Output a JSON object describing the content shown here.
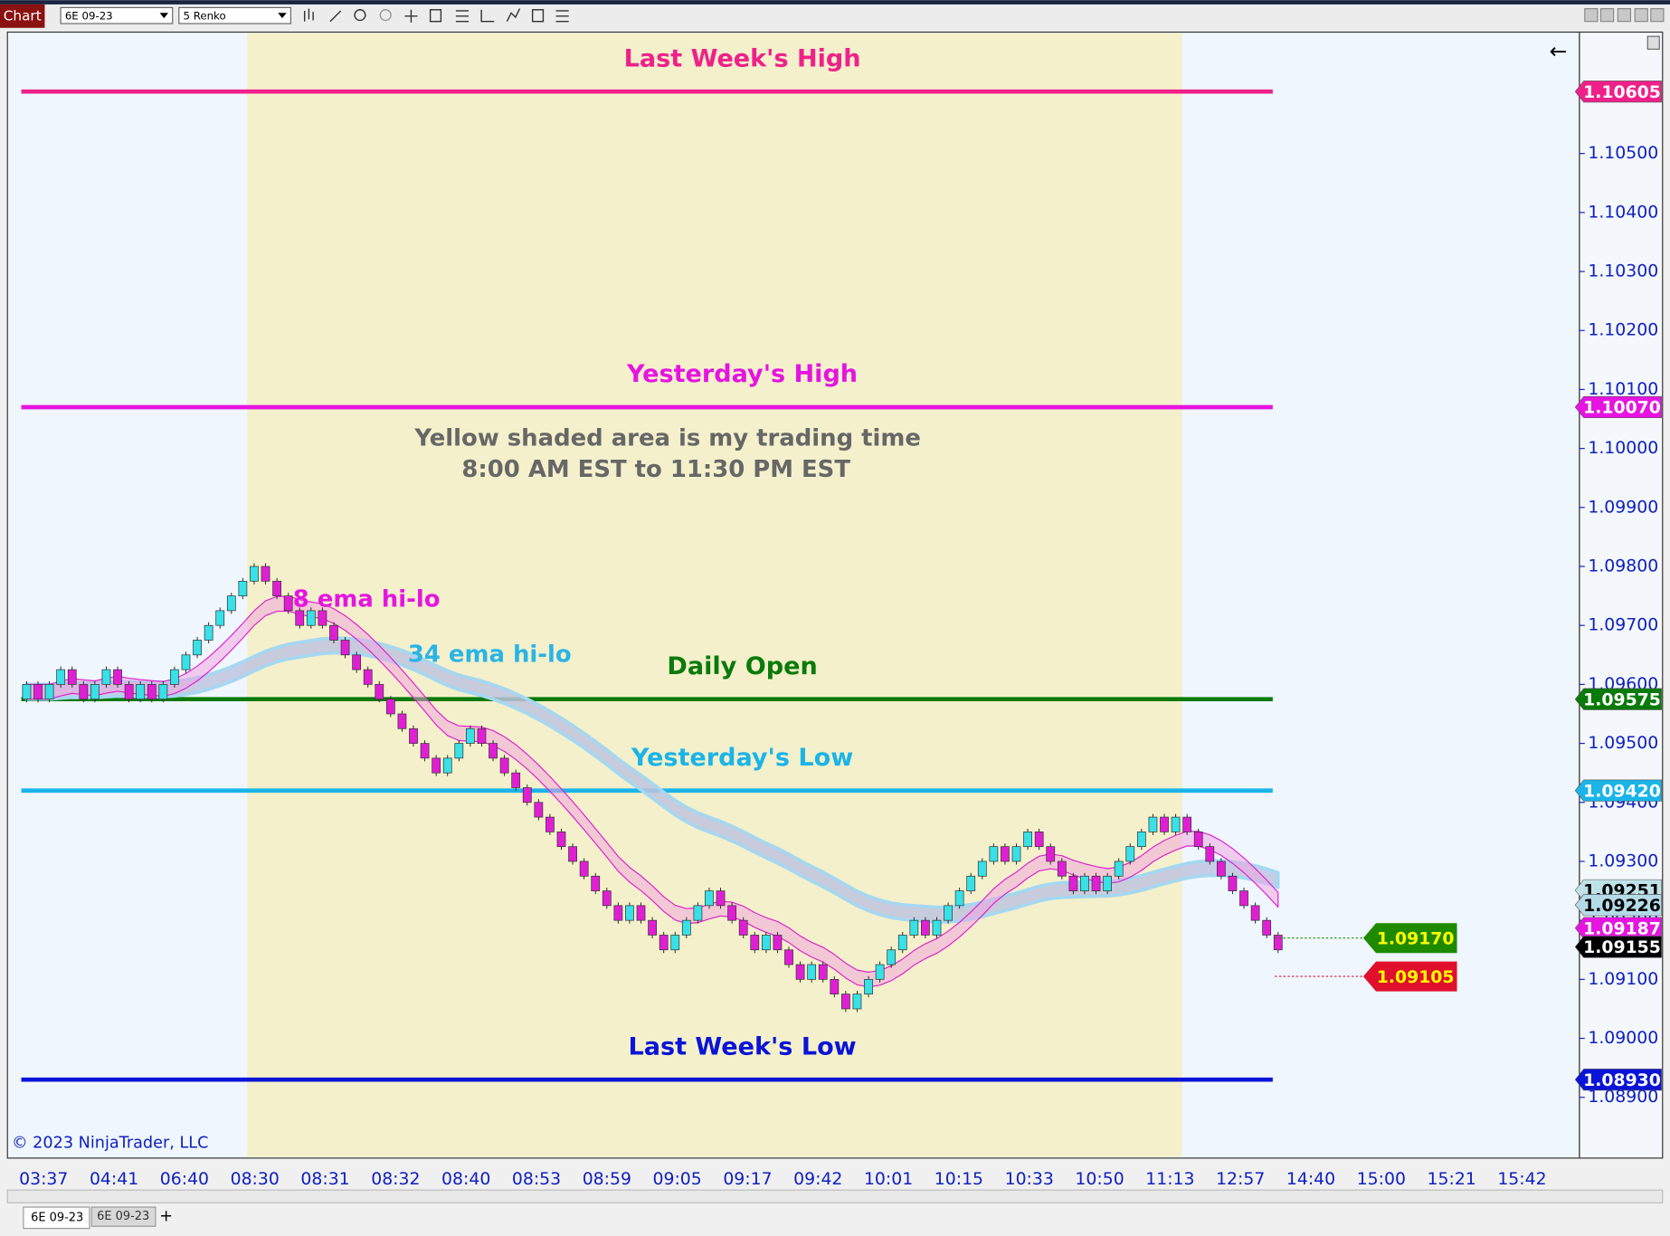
{
  "toolbar": {
    "chart_button": "Chart",
    "instrument": "6E 09-23",
    "bar_type": "5 Renko"
  },
  "chart_data": {
    "type": "renko",
    "open": 1.09575,
    "values": [
      1.096,
      1.09575,
      1.096,
      1.09625,
      1.096,
      1.09575,
      1.096,
      1.09625,
      1.096,
      1.09575,
      1.096,
      1.09575,
      1.096,
      1.09625,
      1.0965,
      1.09675,
      1.097,
      1.09725,
      1.0975,
      1.09775,
      1.098,
      1.09775,
      1.0975,
      1.09725,
      1.097,
      1.09725,
      1.097,
      1.09675,
      1.0965,
      1.09625,
      1.096,
      1.09575,
      1.0955,
      1.09525,
      1.095,
      1.09475,
      1.0945,
      1.09475,
      1.095,
      1.09525,
      1.095,
      1.09475,
      1.0945,
      1.09425,
      1.094,
      1.09375,
      1.0935,
      1.09325,
      1.093,
      1.09275,
      1.0925,
      1.09225,
      1.092,
      1.09225,
      1.092,
      1.09175,
      1.0915,
      1.09175,
      1.092,
      1.09225,
      1.0925,
      1.09225,
      1.092,
      1.09175,
      1.0915,
      1.09175,
      1.0915,
      1.09125,
      1.091,
      1.09125,
      1.091,
      1.09075,
      1.0905,
      1.09075,
      1.091,
      1.09125,
      1.0915,
      1.09175,
      1.092,
      1.09175,
      1.092,
      1.09225,
      1.0925,
      1.09275,
      1.093,
      1.09325,
      1.093,
      1.09325,
      1.0935,
      1.09325,
      1.093,
      1.09275,
      1.0925,
      1.09275,
      1.0925,
      1.09275,
      1.093,
      1.09325,
      1.0935,
      1.09375,
      1.0935,
      1.09375,
      1.0935,
      1.09325,
      1.093,
      1.09275,
      1.0925,
      1.09225,
      1.092,
      1.09175,
      1.0915
    ],
    "up_color": "#38e0e8",
    "down_color": "#e01fd4",
    "x_labels": [
      "03:37",
      "04:41",
      "06:40",
      "08:30",
      "08:31",
      "08:32",
      "08:40",
      "08:53",
      "08:59",
      "09:05",
      "09:17",
      "09:42",
      "10:01",
      "10:15",
      "10:33",
      "10:50",
      "11:13",
      "12:57",
      "14:40",
      "15:00",
      "15:21",
      "15:42"
    ],
    "ylim": [
      1.08797,
      1.10704
    ],
    "yticks": [
      {
        "value": 1.089,
        "label": "1.08900"
      },
      {
        "value": 1.09,
        "label": "1.09000"
      },
      {
        "value": 1.091,
        "label": "1.09100"
      },
      {
        "value": 1.092,
        "label": "1.09200"
      },
      {
        "value": 1.093,
        "label": "1.09300"
      },
      {
        "value": 1.094,
        "label": "1.09400"
      },
      {
        "value": 1.095,
        "label": "1.09500"
      },
      {
        "value": 1.096,
        "label": "1.09600"
      },
      {
        "value": 1.097,
        "label": "1.09700"
      },
      {
        "value": 1.098,
        "label": "1.09800"
      },
      {
        "value": 1.099,
        "label": "1.09900"
      },
      {
        "value": 1.1,
        "label": "1.10000"
      },
      {
        "value": 1.101,
        "label": "1.10100"
      },
      {
        "value": 1.102,
        "label": "1.10200"
      },
      {
        "value": 1.103,
        "label": "1.10300"
      },
      {
        "value": 1.104,
        "label": "1.10400"
      },
      {
        "value": 1.105,
        "label": "1.10500"
      }
    ],
    "levels": [
      {
        "name": "Last Week's High",
        "value": 1.10605,
        "value_label": "1.10605",
        "color": "#f0208a"
      },
      {
        "name": "Yesterday's High",
        "value": 1.1007,
        "value_label": "1.10070",
        "color": "#e614e0"
      },
      {
        "name": "Daily Open",
        "value": 1.09575,
        "value_label": "1.09575",
        "color": "#0a7a0a"
      },
      {
        "name": "Yesterday's Low",
        "value": 1.0942,
        "value_label": "1.09420",
        "color": "#1ab4e8"
      },
      {
        "name": "Last Week's Low",
        "value": 1.0893,
        "value_label": "1.08930",
        "color": "#0a14d8"
      }
    ],
    "price_markers": [
      {
        "value": 1.09251,
        "value_label": "1.09251",
        "color": "#bfe2e8",
        "text_color": "#000000"
      },
      {
        "value": 1.09226,
        "value_label": "1.09226",
        "color": "#b4dbe8",
        "text_color": "#000000"
      },
      {
        "value": 1.09187,
        "value_label": "1.09187",
        "color": "#e614e0",
        "text_color": "#ffffff"
      },
      {
        "value": 1.09155,
        "value_label": "1.09155",
        "color": "#000000",
        "text_color": "#ffffff"
      }
    ],
    "orders": [
      {
        "value": 1.0917,
        "value_label": "1.09170",
        "color": "#1e8a00",
        "text_color": "#ffff00"
      },
      {
        "value": 1.09105,
        "value_label": "1.09105",
        "color": "#e0102c",
        "text_color": "#ffff00"
      }
    ],
    "note": [
      "Yellow shaded area is my trading time",
      "8:00 AM EST to 11:30 PM EST"
    ],
    "ema_labels": [
      "8 ema hi-lo",
      "34 ema hi-lo"
    ],
    "copyright": "© 2023 NinjaTrader, LLC"
  },
  "tabs": [
    "6E 09-23",
    "6E 09-23"
  ]
}
